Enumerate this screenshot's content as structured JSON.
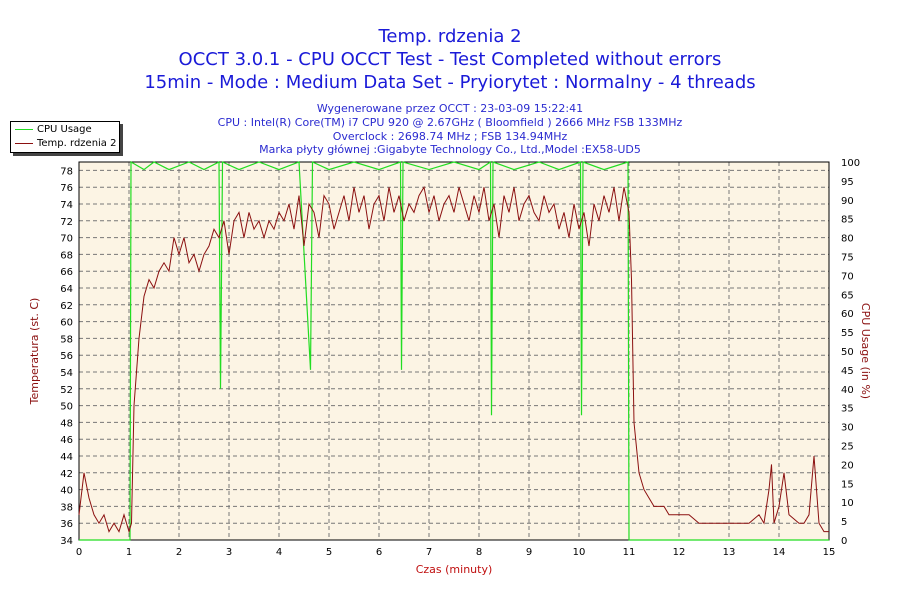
{
  "header": {
    "title": "Temp. rdzenia 2",
    "subtitle1": "OCCT 3.0.1 - CPU OCCT Test - Test Completed without errors",
    "subtitle2": "15min - Mode : Medium Data Set - Pryiorytet : Normalny - 4 threads",
    "info": [
      "Wygenerowane przez OCCT : 23-03-09 15:22:41",
      "CPU : Intel(R) Core(TM) i7 CPU 920 @ 2.67GHz ( Bloomfield ) 2666 MHz FSB 133MHz",
      "Overclock : 2698.74 MHz ; FSB 134.94MHz",
      "Marka płyty głównej :Gigabyte Technology Co., Ltd.,Model :EX58-UD5"
    ]
  },
  "chart_data": {
    "type": "line",
    "title": "Temp. rdzenia 2",
    "xlabel": "Czas (minuty)",
    "ylabel": "Temperatura (st. C)",
    "y2label": "CPU Usage (in %)",
    "xlim": [
      0,
      15
    ],
    "ylim": [
      34,
      79
    ],
    "y2lim": [
      0,
      100
    ],
    "xticks": [
      0,
      1,
      2,
      3,
      4,
      5,
      6,
      7,
      8,
      9,
      10,
      11,
      12,
      13,
      14,
      15
    ],
    "yticks": [
      34,
      36,
      38,
      40,
      42,
      44,
      46,
      48,
      50,
      52,
      54,
      56,
      58,
      60,
      62,
      64,
      66,
      68,
      70,
      72,
      74,
      76,
      78
    ],
    "y2ticks": [
      0,
      5,
      10,
      15,
      20,
      25,
      30,
      35,
      40,
      45,
      50,
      55,
      60,
      65,
      70,
      75,
      80,
      85,
      90,
      95,
      100
    ],
    "grid": true,
    "legend": "top-left",
    "colors": {
      "cpu": "#22dd22",
      "temp": "#8b1010",
      "bg": "#fcf4e4",
      "axis": "#8b1010",
      "xlabel": "#c01010"
    },
    "series": [
      {
        "name": "CPU Usage",
        "axis": "right",
        "points": [
          [
            0,
            0
          ],
          [
            1.02,
            0
          ],
          [
            1.04,
            100
          ],
          [
            1.3,
            98
          ],
          [
            1.5,
            100
          ],
          [
            1.8,
            98
          ],
          [
            2.2,
            100
          ],
          [
            2.5,
            98
          ],
          [
            2.8,
            100
          ],
          [
            2.83,
            40
          ],
          [
            2.87,
            100
          ],
          [
            3.2,
            98
          ],
          [
            3.6,
            100
          ],
          [
            4.0,
            98
          ],
          [
            4.4,
            100
          ],
          [
            4.63,
            45
          ],
          [
            4.67,
            100
          ],
          [
            5.0,
            98
          ],
          [
            5.5,
            100
          ],
          [
            6.0,
            98
          ],
          [
            6.43,
            100
          ],
          [
            6.45,
            45
          ],
          [
            6.48,
            100
          ],
          [
            7.0,
            98
          ],
          [
            7.5,
            100
          ],
          [
            8.0,
            98
          ],
          [
            8.23,
            100
          ],
          [
            8.25,
            33
          ],
          [
            8.28,
            100
          ],
          [
            8.7,
            98
          ],
          [
            9.2,
            100
          ],
          [
            9.6,
            98
          ],
          [
            10.03,
            100
          ],
          [
            10.05,
            33
          ],
          [
            10.08,
            100
          ],
          [
            10.5,
            98
          ],
          [
            10.98,
            100
          ],
          [
            11.0,
            0
          ],
          [
            15,
            0
          ]
        ]
      },
      {
        "name": "Temp. rdzenia 2",
        "axis": "left",
        "points": [
          [
            0,
            37
          ],
          [
            0.1,
            42
          ],
          [
            0.2,
            39
          ],
          [
            0.3,
            37
          ],
          [
            0.4,
            36
          ],
          [
            0.5,
            37
          ],
          [
            0.6,
            35
          ],
          [
            0.7,
            36
          ],
          [
            0.8,
            35
          ],
          [
            0.9,
            37
          ],
          [
            1.0,
            35
          ],
          [
            1.05,
            36
          ],
          [
            1.1,
            50
          ],
          [
            1.2,
            58
          ],
          [
            1.3,
            63
          ],
          [
            1.4,
            65
          ],
          [
            1.5,
            64
          ],
          [
            1.6,
            66
          ],
          [
            1.7,
            67
          ],
          [
            1.8,
            66
          ],
          [
            1.9,
            70
          ],
          [
            2.0,
            68
          ],
          [
            2.1,
            70
          ],
          [
            2.2,
            67
          ],
          [
            2.3,
            68
          ],
          [
            2.4,
            66
          ],
          [
            2.5,
            68
          ],
          [
            2.6,
            69
          ],
          [
            2.7,
            71
          ],
          [
            2.8,
            70
          ],
          [
            2.9,
            72
          ],
          [
            3.0,
            68
          ],
          [
            3.1,
            72
          ],
          [
            3.2,
            73
          ],
          [
            3.3,
            70
          ],
          [
            3.4,
            73
          ],
          [
            3.5,
            71
          ],
          [
            3.6,
            72
          ],
          [
            3.7,
            70
          ],
          [
            3.8,
            72
          ],
          [
            3.9,
            71
          ],
          [
            4.0,
            73
          ],
          [
            4.1,
            72
          ],
          [
            4.2,
            74
          ],
          [
            4.3,
            71
          ],
          [
            4.4,
            75
          ],
          [
            4.5,
            69
          ],
          [
            4.6,
            74
          ],
          [
            4.7,
            73
          ],
          [
            4.8,
            70
          ],
          [
            4.9,
            75
          ],
          [
            5.0,
            74
          ],
          [
            5.1,
            71
          ],
          [
            5.2,
            73
          ],
          [
            5.3,
            75
          ],
          [
            5.4,
            72
          ],
          [
            5.5,
            76
          ],
          [
            5.6,
            73
          ],
          [
            5.7,
            75
          ],
          [
            5.8,
            71
          ],
          [
            5.9,
            74
          ],
          [
            6.0,
            75
          ],
          [
            6.1,
            72
          ],
          [
            6.2,
            76
          ],
          [
            6.3,
            73
          ],
          [
            6.4,
            75
          ],
          [
            6.5,
            72
          ],
          [
            6.6,
            74
          ],
          [
            6.7,
            73
          ],
          [
            6.8,
            75
          ],
          [
            6.9,
            76
          ],
          [
            7.0,
            73
          ],
          [
            7.1,
            75
          ],
          [
            7.2,
            72
          ],
          [
            7.3,
            74
          ],
          [
            7.4,
            75
          ],
          [
            7.5,
            73
          ],
          [
            7.6,
            76
          ],
          [
            7.7,
            74
          ],
          [
            7.8,
            72
          ],
          [
            7.9,
            75
          ],
          [
            8.0,
            73
          ],
          [
            8.1,
            76
          ],
          [
            8.2,
            72
          ],
          [
            8.3,
            74
          ],
          [
            8.4,
            70
          ],
          [
            8.5,
            75
          ],
          [
            8.6,
            73
          ],
          [
            8.7,
            76
          ],
          [
            8.8,
            72
          ],
          [
            8.9,
            74
          ],
          [
            9.0,
            75
          ],
          [
            9.1,
            73
          ],
          [
            9.2,
            72
          ],
          [
            9.3,
            75
          ],
          [
            9.4,
            73
          ],
          [
            9.5,
            74
          ],
          [
            9.6,
            71
          ],
          [
            9.7,
            73
          ],
          [
            9.8,
            70
          ],
          [
            9.9,
            74
          ],
          [
            10.0,
            71
          ],
          [
            10.1,
            73
          ],
          [
            10.2,
            69
          ],
          [
            10.3,
            74
          ],
          [
            10.4,
            72
          ],
          [
            10.5,
            75
          ],
          [
            10.6,
            73
          ],
          [
            10.7,
            76
          ],
          [
            10.8,
            72
          ],
          [
            10.9,
            76
          ],
          [
            11.0,
            73
          ],
          [
            11.05,
            65
          ],
          [
            11.1,
            48
          ],
          [
            11.2,
            42
          ],
          [
            11.3,
            40
          ],
          [
            11.4,
            39
          ],
          [
            11.5,
            38
          ],
          [
            11.6,
            38
          ],
          [
            11.7,
            38
          ],
          [
            11.8,
            37
          ],
          [
            11.9,
            37
          ],
          [
            12.0,
            37
          ],
          [
            12.2,
            37
          ],
          [
            12.4,
            36
          ],
          [
            12.6,
            36
          ],
          [
            12.8,
            36
          ],
          [
            13.0,
            36
          ],
          [
            13.2,
            36
          ],
          [
            13.4,
            36
          ],
          [
            13.6,
            37
          ],
          [
            13.7,
            36
          ],
          [
            13.8,
            40
          ],
          [
            13.85,
            43
          ],
          [
            13.9,
            36
          ],
          [
            14.0,
            38
          ],
          [
            14.1,
            42
          ],
          [
            14.2,
            37
          ],
          [
            14.4,
            36
          ],
          [
            14.5,
            36
          ],
          [
            14.6,
            37
          ],
          [
            14.7,
            44
          ],
          [
            14.8,
            36
          ],
          [
            14.9,
            35
          ],
          [
            15.0,
            35
          ]
        ]
      }
    ]
  }
}
